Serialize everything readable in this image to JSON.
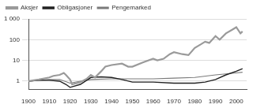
{
  "chart_data": {
    "type": "line",
    "log": "y",
    "grid": true,
    "legend": "top-left",
    "xlim": [
      1900,
      2005
    ],
    "xticks": [
      1900,
      1910,
      1920,
      1930,
      1940,
      1950,
      1960,
      1970,
      1980,
      1990,
      2000
    ],
    "ylim": [
      0.4,
      1000
    ],
    "yticks": [
      1,
      10,
      100,
      {
        "value": 1000,
        "label": "1 000"
      }
    ],
    "series": [
      {
        "name": "Aksjer",
        "color": "#9a9a9a",
        "x": [
          1900,
          1905,
          1910,
          1912,
          1915,
          1917,
          1918,
          1920,
          1921,
          1925,
          1928,
          1930,
          1932,
          1935,
          1937,
          1940,
          1945,
          1948,
          1950,
          1955,
          1960,
          1962,
          1965,
          1968,
          1970,
          1974,
          1977,
          1980,
          1983,
          1985,
          1987,
          1990,
          1992,
          1995,
          1998,
          2000,
          2002,
          2003
        ],
        "values": [
          1,
          1.2,
          1.5,
          1.8,
          2,
          2.5,
          2,
          1.2,
          0.7,
          0.9,
          1.3,
          2,
          1.5,
          3,
          5,
          6,
          7,
          5,
          5,
          8,
          12,
          10,
          12,
          20,
          25,
          20,
          18,
          40,
          60,
          80,
          70,
          150,
          100,
          200,
          300,
          400,
          200,
          250
        ]
      },
      {
        "name": "Obligasjoner",
        "color": "#222222",
        "x": [
          1900,
          1905,
          1910,
          1915,
          1918,
          1920,
          1925,
          1930,
          1935,
          1940,
          1945,
          1950,
          1955,
          1960,
          1970,
          1980,
          1985,
          1990,
          1995,
          2000,
          2003
        ],
        "values": [
          1,
          1.1,
          1.1,
          1,
          0.7,
          0.5,
          0.7,
          1.5,
          1.6,
          1.5,
          1.2,
          0.9,
          0.9,
          0.9,
          0.8,
          0.8,
          0.9,
          1.2,
          2,
          3,
          4
        ]
      },
      {
        "name": "Pengemarked",
        "color": "#7a7a7a",
        "x": [
          1900,
          1905,
          1910,
          1915,
          1920,
          1925,
          1930,
          1940,
          1950,
          1960,
          1970,
          1980,
          1990,
          2000,
          2003
        ],
        "values": [
          1,
          1.1,
          1.2,
          1.2,
          0.8,
          1,
          1.2,
          1.3,
          1.3,
          1.3,
          1.4,
          1.5,
          2,
          2.5,
          2.7
        ]
      }
    ]
  }
}
